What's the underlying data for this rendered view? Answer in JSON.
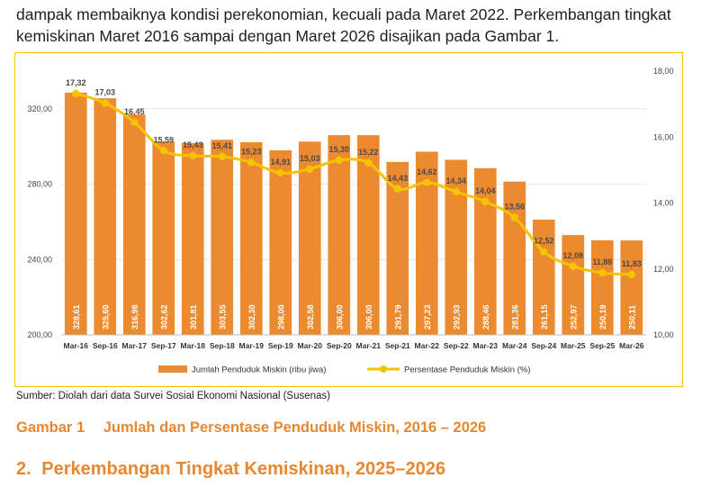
{
  "intro": {
    "line1": "dampak membaiknya kondisi perekonomian, kecuali pada Maret 2022. Perkembangan tingkat",
    "line2": "kemiskinan Maret 2016 sampai dengan Maret 2026 disajikan pada Gambar 1."
  },
  "colors": {
    "bar": "#ec8a2f",
    "line": "#f6c300",
    "accent": "#e8872e",
    "frame": "#f3c600"
  },
  "chart_data": {
    "type": "bar",
    "categories": [
      "Mar-16",
      "Sep-16",
      "Mar-17",
      "Sep-17",
      "Mar-18",
      "Sep-18",
      "Mar-19",
      "Sep-19",
      "Mar-20",
      "Sep-20",
      "Mar-21",
      "Sep-21",
      "Mar-22",
      "Sep-22",
      "Mar-23",
      "Mar-24",
      "Sep-24",
      "Mar-25",
      "Sep-25",
      "Mar-26"
    ],
    "series": [
      {
        "name": "Jumlah Penduduk Miskin (ribu jiwa)",
        "type": "bar",
        "axis": "left",
        "values": [
          328.61,
          325.6,
          316.98,
          302.62,
          301.81,
          303.55,
          302.3,
          298.0,
          302.58,
          306.0,
          306.0,
          291.79,
          297.23,
          292.93,
          288.46,
          281.36,
          261.15,
          252.97,
          250.19,
          250.11
        ],
        "labels": [
          "328,61",
          "325,60",
          "316,98",
          "302,62",
          "301,81",
          "303,55",
          "302,30",
          "298,00",
          "302,58",
          "306,00",
          "306,00",
          "291,79",
          "297,23",
          "292,93",
          "288,46",
          "281,36",
          "261,15",
          "252,97",
          "250,19",
          "250,11"
        ]
      },
      {
        "name": "Persentase Penduduk Miskin (%)",
        "type": "line",
        "axis": "right",
        "values": [
          17.32,
          17.03,
          16.45,
          15.59,
          15.43,
          15.41,
          15.23,
          14.91,
          15.03,
          15.3,
          15.22,
          14.43,
          14.62,
          14.34,
          14.04,
          13.56,
          12.52,
          12.08,
          11.88,
          11.83
        ],
        "labels": [
          "17,32",
          "17,03",
          "16,45",
          "15,59",
          "15,43",
          "15,41",
          "15,23",
          "14,91",
          "15,03",
          "15,30",
          "15,22",
          "14,43",
          "14,62",
          "14,34",
          "14,04",
          "13,56",
          "12,52",
          "12,08",
          "11,88",
          "11,83"
        ]
      }
    ],
    "y_left": {
      "lim": [
        200,
        340
      ],
      "ticks": [
        "200,00",
        "240,00",
        "280,00",
        "320,00"
      ],
      "tick_values": [
        200,
        240,
        280,
        320
      ]
    },
    "y_right": {
      "lim": [
        10,
        18
      ],
      "ticks": [
        "10,00",
        "12,00",
        "14,00",
        "16,00",
        "18,00"
      ],
      "tick_values": [
        10,
        12,
        14,
        16,
        18
      ]
    },
    "legend_position": "bottom-center",
    "grid": true
  },
  "source": "Sumber: Diolah dari data Survei Sosial Ekonomi Nasional (Susenas)",
  "caption": {
    "number": "Gambar 1",
    "text": "Jumlah dan Persentase Penduduk Miskin, 2016 – 2026"
  },
  "section": {
    "number": "2.",
    "text": "Perkembangan Tingkat Kemiskinan, 2025–2026"
  }
}
